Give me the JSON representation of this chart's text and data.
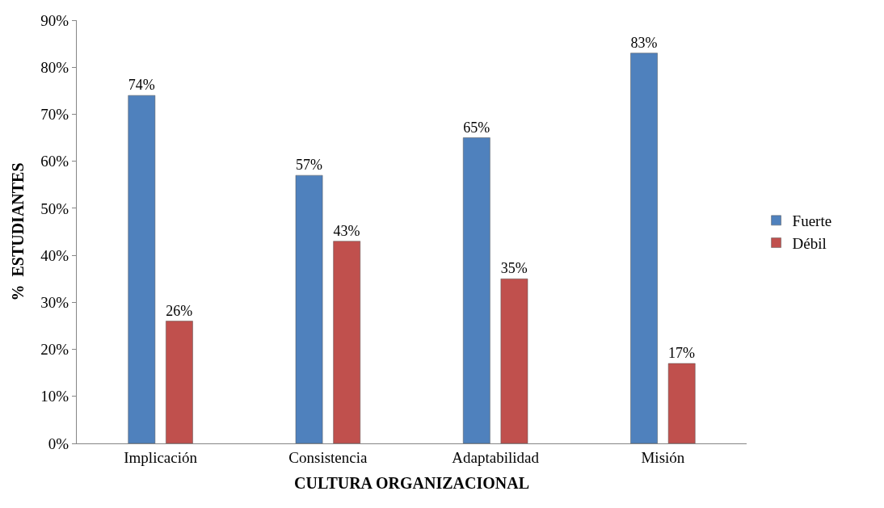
{
  "chart_data": {
    "type": "bar",
    "xlabel": "CULTURA ORGANIZACIONAL",
    "ylabel": "%  ESTUDIANTES",
    "categories": [
      "Implicación",
      "Consistencia",
      "Adaptabilidad",
      "Misión"
    ],
    "series": [
      {
        "name": "Fuerte",
        "color": "#4f81bd",
        "values": [
          74,
          57,
          65,
          83
        ],
        "value_labels": [
          "74%",
          "57%",
          "65%",
          "83%"
        ]
      },
      {
        "name": "Débil",
        "color": "#c0504d",
        "values": [
          26,
          43,
          35,
          17
        ],
        "value_labels": [
          "26%",
          "43%",
          "35%",
          "17%"
        ]
      }
    ],
    "ylim": [
      0,
      90
    ],
    "yticks": [
      {
        "value": 0,
        "label": "0%"
      },
      {
        "value": 10,
        "label": "10%"
      },
      {
        "value": 20,
        "label": "20%"
      },
      {
        "value": 30,
        "label": "30%"
      },
      {
        "value": 40,
        "label": "40%"
      },
      {
        "value": 50,
        "label": "50%"
      },
      {
        "value": 60,
        "label": "60%"
      },
      {
        "value": 70,
        "label": "70%"
      },
      {
        "value": 80,
        "label": "80%"
      },
      {
        "value": 90,
        "label": "90%"
      }
    ],
    "legend": "right"
  }
}
